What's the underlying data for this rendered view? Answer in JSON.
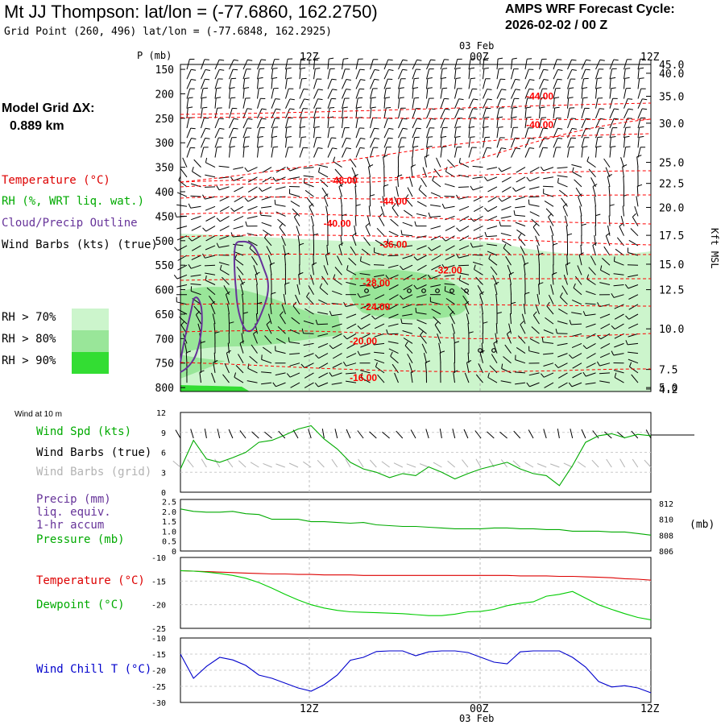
{
  "header": {
    "title": "Mt JJ Thompson:  lat/lon = (-77.6860, 162.2750)",
    "grid_point": "Grid Point (260, 496) lat/lon = (-77.6848, 162.2925)",
    "cycle_label": "AMPS WRF Forecast Cycle:",
    "cycle_value": "2026-02-02 / 00  Z",
    "model_grid_label": "Model Grid ΔX:",
    "model_grid_value": "0.889 km"
  },
  "colors": {
    "temperature": "#ff0000",
    "rh": "#00aa00",
    "cloud": "#663399",
    "wind": "#000000",
    "wind_grid": "#b3b3b3",
    "precip": "#663399",
    "pressure": "#00aa00",
    "dewpoint": "#00cc00",
    "windchill": "#0000cc",
    "rh70": "#ccf5cc",
    "rh80": "#99e699",
    "rh90": "#33dd33"
  },
  "legend": {
    "temperature": "Temperature (°C)",
    "rh": "RH (%, WRT liq. wat.)",
    "cloud": "Cloud/Precip Outline",
    "wind": "Wind Barbs (kts) (true)",
    "rh_levels": [
      "RH > 70%",
      "RH > 80%",
      "RH > 90%"
    ]
  },
  "time_axis": {
    "ticks": [
      "12Z",
      "00Z",
      "12Z"
    ],
    "date_label": "03 Feb",
    "bottom_ticks": [
      "12Z",
      "00Z",
      "12Z"
    ],
    "bottom_date_label": "03 Feb"
  },
  "chart_data": [
    {
      "id": "cross_section",
      "type": "heatmap",
      "ylabel": "P (mb)",
      "y_right_label": "Kft MSL",
      "pressure_ticks": [
        150,
        200,
        250,
        300,
        350,
        400,
        450,
        500,
        550,
        600,
        650,
        700,
        750,
        800
      ],
      "pressure_tick_labels": [
        "150",
        "200",
        "250",
        "300",
        "350",
        "400",
        "450",
        "500",
        "550",
        "600",
        "650",
        "700",
        "750",
        "800"
      ],
      "height_ticks": [
        {
          "kft": "45.0",
          "p": 140
        },
        {
          "kft": "40.0",
          "p": 158
        },
        {
          "kft": "35.0",
          "p": 205
        },
        {
          "kft": "30.0",
          "p": 260
        },
        {
          "kft": "25.0",
          "p": 340
        },
        {
          "kft": "22.5",
          "p": 383
        },
        {
          "kft": "20.0",
          "p": 432
        },
        {
          "kft": "17.5",
          "p": 489
        },
        {
          "kft": "15.0",
          "p": 548
        },
        {
          "kft": "12.5",
          "p": 600
        },
        {
          "kft": "10.0",
          "p": 680
        },
        {
          "kft": "7.5",
          "p": 763
        },
        {
          "kft": "5.0",
          "p": 800
        },
        {
          "kft": "4.2",
          "p": 803
        }
      ],
      "ylim": [
        140,
        808
      ],
      "xlim": [
        0,
        36
      ],
      "temperature_labels": [
        {
          "text": "-44.00",
          "t": 27.5,
          "p": 205
        },
        {
          "text": "-40.00",
          "t": 27.5,
          "p": 263
        },
        {
          "text": "-48.00",
          "t": 12.5,
          "p": 377
        },
        {
          "text": "-44.00",
          "t": 16.3,
          "p": 420
        },
        {
          "text": "-40.00",
          "t": 12,
          "p": 465
        },
        {
          "text": "-36.00",
          "t": 16.3,
          "p": 508
        },
        {
          "text": "-32.00",
          "t": 20.5,
          "p": 560
        },
        {
          "text": "-28.00",
          "t": 15,
          "p": 587
        },
        {
          "text": "-24.00",
          "t": 15,
          "p": 635
        },
        {
          "text": "-20.00",
          "t": 14,
          "p": 705
        },
        {
          "text": "-16.00",
          "t": 14,
          "p": 780
        }
      ]
    },
    {
      "id": "wind10m",
      "type": "line",
      "label_small": "Wind at 10 m",
      "series_labels": [
        "Wind Spd (kts)",
        "Wind Barbs (true)",
        "Wind Barbs (grid)"
      ],
      "yticks": [
        "0",
        "3",
        "6",
        "9",
        "12"
      ],
      "ylim": [
        0,
        12
      ],
      "x": [
        0,
        1,
        2,
        3,
        4,
        5,
        6,
        7,
        8,
        9,
        10,
        11,
        12,
        13,
        14,
        15,
        16,
        17,
        18,
        19,
        20,
        21,
        22,
        23,
        24,
        25,
        26,
        27,
        28,
        29,
        30,
        31,
        32,
        33,
        34,
        35,
        36
      ],
      "values": [
        3.5,
        7.8,
        5.0,
        4.5,
        5.2,
        6.0,
        7.5,
        7.8,
        8.6,
        9.5,
        10.0,
        8.0,
        6.5,
        4.5,
        3.5,
        3.0,
        2.2,
        2.8,
        2.5,
        3.8,
        3.0,
        2.0,
        2.8,
        3.5,
        4.0,
        4.5,
        3.5,
        2.8,
        2.5,
        1.0,
        4.0,
        7.5,
        8.5,
        8.8,
        8.2,
        8.7,
        8.5
      ]
    },
    {
      "id": "precip_pressure",
      "type": "line",
      "series_labels": [
        "Precip (mm)",
        "liq. equiv.",
        "1-hr accum",
        "Pressure (mb)"
      ],
      "units_label": "(mb)",
      "left_ticks": [
        "0",
        "0.5",
        "1.0",
        "1.5",
        "2.0",
        "2.5"
      ],
      "right_ticks": [
        "806",
        "808",
        "810",
        "812"
      ],
      "ylim": [
        806,
        812.5
      ],
      "x": [
        0,
        1,
        2,
        3,
        4,
        5,
        6,
        7,
        8,
        9,
        10,
        11,
        12,
        13,
        14,
        15,
        16,
        17,
        18,
        19,
        20,
        21,
        22,
        23,
        24,
        25,
        26,
        27,
        28,
        29,
        30,
        31,
        32,
        33,
        34,
        35,
        36
      ],
      "values": [
        811.3,
        811.0,
        810.9,
        810.9,
        811.0,
        810.7,
        810.6,
        810.0,
        810.0,
        810.0,
        809.7,
        809.7,
        809.6,
        809.5,
        809.6,
        809.3,
        809.2,
        809.1,
        809.1,
        809.0,
        808.9,
        808.8,
        808.8,
        808.8,
        808.9,
        808.9,
        808.8,
        808.8,
        808.7,
        808.7,
        808.5,
        808.5,
        808.5,
        808.4,
        808.4,
        808.2,
        808.0
      ]
    },
    {
      "id": "temp_dewpoint",
      "type": "line",
      "yticks": [
        "-10",
        "-15",
        "-20",
        "-25"
      ],
      "ylim": [
        -25,
        -10
      ],
      "x": [
        0,
        1,
        2,
        3,
        4,
        5,
        6,
        7,
        8,
        9,
        10,
        11,
        12,
        13,
        14,
        15,
        16,
        17,
        18,
        19,
        20,
        21,
        22,
        23,
        24,
        25,
        26,
        27,
        28,
        29,
        30,
        31,
        32,
        33,
        34,
        35,
        36
      ],
      "series": [
        {
          "name": "Temperature (°C)",
          "values": [
            -12.8,
            -12.9,
            -13.0,
            -13.1,
            -13.2,
            -13.3,
            -13.4,
            -13.5,
            -13.5,
            -13.6,
            -13.6,
            -13.7,
            -13.7,
            -13.7,
            -13.8,
            -13.8,
            -13.8,
            -13.8,
            -13.8,
            -13.8,
            -13.8,
            -13.8,
            -13.8,
            -13.8,
            -13.8,
            -13.8,
            -13.9,
            -13.9,
            -13.9,
            -14.0,
            -14.0,
            -14.1,
            -14.2,
            -14.3,
            -14.5,
            -14.6,
            -14.8
          ]
        },
        {
          "name": "Dewpoint (°C)",
          "values": [
            -12.8,
            -12.9,
            -13.1,
            -13.4,
            -13.8,
            -14.4,
            -15.3,
            -16.5,
            -17.8,
            -19.0,
            -20.0,
            -20.7,
            -21.2,
            -21.5,
            -21.6,
            -21.7,
            -21.8,
            -21.9,
            -22.1,
            -22.3,
            -22.3,
            -22.0,
            -21.5,
            -21.4,
            -21.0,
            -20.2,
            -19.7,
            -19.4,
            -18.2,
            -17.8,
            -17.2,
            -18.6,
            -20.0,
            -21.0,
            -21.9,
            -22.7,
            -23.2
          ]
        }
      ]
    },
    {
      "id": "windchill",
      "type": "line",
      "series_label": "Wind Chill T (°C)",
      "yticks": [
        "-10",
        "-15",
        "-20",
        "-25",
        "-30"
      ],
      "ylim": [
        -30,
        -10
      ],
      "x": [
        0,
        1,
        2,
        3,
        4,
        5,
        6,
        7,
        8,
        9,
        10,
        11,
        12,
        13,
        14,
        15,
        16,
        17,
        18,
        19,
        20,
        21,
        22,
        23,
        24,
        25,
        26,
        27,
        28,
        29,
        30,
        31,
        32,
        33,
        34,
        35,
        36
      ],
      "values": [
        -15.0,
        -22.5,
        -18.8,
        -16.0,
        -16.8,
        -18.5,
        -21.5,
        -22.5,
        -24.0,
        -25.5,
        -26.5,
        -24.5,
        -21.5,
        -16.9,
        -16.0,
        -14.2,
        -14.0,
        -14.0,
        -15.5,
        -14.3,
        -14.0,
        -14.0,
        -14.5,
        -16.0,
        -17.5,
        -18.0,
        -14.3,
        -14.0,
        -14.0,
        -14.0,
        -16.0,
        -19.0,
        -23.5,
        -25.2,
        -24.8,
        -25.5,
        -27.0
      ]
    }
  ]
}
